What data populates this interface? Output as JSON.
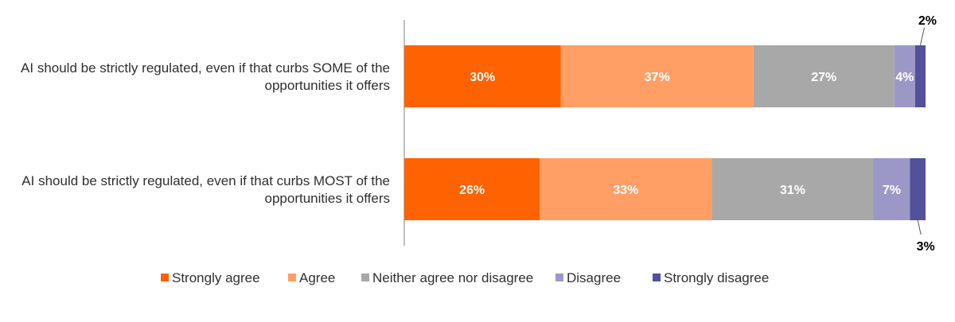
{
  "chart_data": {
    "type": "bar",
    "orientation": "horizontal",
    "stacked": true,
    "categories": [
      [
        "AI should be strictly regulated, even if that curbs SOME of the",
        "opportunities it offers"
      ],
      [
        "AI should be strictly regulated, even if that curbs MOST of the",
        "opportunities it offers"
      ]
    ],
    "series": [
      {
        "name": "Strongly agree",
        "color": "#ff6200",
        "values": [
          30,
          26
        ],
        "labels": [
          "30%",
          "26%"
        ]
      },
      {
        "name": "Agree",
        "color": "#ff9f66",
        "values": [
          37,
          33
        ],
        "labels": [
          "37%",
          "33%"
        ]
      },
      {
        "name": "Neither agree nor disagree",
        "color": "#a8a8a8",
        "values": [
          27,
          31
        ],
        "labels": [
          "27%",
          "31%"
        ]
      },
      {
        "name": "Disagree",
        "color": "#9b98c8",
        "values": [
          4,
          7
        ],
        "labels": [
          "4%",
          "7%"
        ]
      },
      {
        "name": "Strongly disagree",
        "color": "#525199",
        "values": [
          2,
          3
        ],
        "labels": [
          "2%",
          "3%"
        ]
      }
    ],
    "xlim": [
      0,
      100
    ],
    "grid": false,
    "legend_position": "bottom"
  }
}
